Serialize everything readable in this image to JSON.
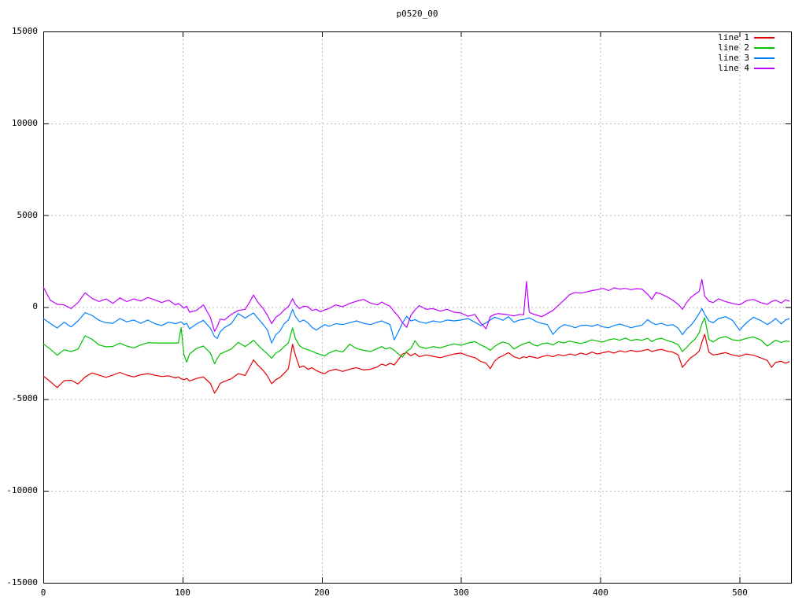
{
  "chart_data": {
    "type": "line",
    "title": "p0520_00",
    "xlabel": "",
    "ylabel": "",
    "xlim": [
      0,
      537
    ],
    "ylim": [
      -15000,
      15000
    ],
    "xticks": [
      0,
      100,
      200,
      300,
      400,
      500
    ],
    "yticks": [
      -15000,
      -10000,
      -5000,
      0,
      5000,
      10000,
      15000
    ],
    "grid": true,
    "grid_style": "dashed-gray",
    "legend_position": "top-right-inside",
    "x": [
      0,
      5,
      10,
      15,
      20,
      25,
      30,
      35,
      40,
      45,
      50,
      55,
      60,
      65,
      70,
      75,
      80,
      85,
      90,
      95,
      97,
      99,
      101,
      103,
      105,
      110,
      115,
      120,
      123,
      125,
      127,
      130,
      135,
      140,
      145,
      148,
      151,
      154,
      158,
      161,
      164,
      167,
      170,
      173,
      176,
      179,
      181,
      184,
      187,
      190,
      193,
      196,
      199,
      202,
      205,
      210,
      215,
      220,
      225,
      230,
      235,
      240,
      243,
      246,
      249,
      252,
      255,
      258,
      261,
      264,
      267,
      270,
      275,
      280,
      285,
      290,
      295,
      300,
      305,
      310,
      314,
      318,
      321,
      324,
      327,
      330,
      334,
      338,
      342,
      345,
      347,
      349,
      352,
      355,
      358,
      362,
      366,
      370,
      374,
      378,
      382,
      386,
      390,
      394,
      398,
      402,
      406,
      410,
      414,
      418,
      422,
      426,
      430,
      434,
      437,
      440,
      444,
      448,
      452,
      456,
      459,
      462,
      465,
      468,
      471,
      473,
      475,
      478,
      481,
      485,
      490,
      495,
      500,
      505,
      510,
      515,
      520,
      523,
      526,
      530,
      533,
      536
    ],
    "series": [
      {
        "name": "line 1",
        "color": "#e60000",
        "values": [
          -3750,
          -4050,
          -4380,
          -4000,
          -3980,
          -4180,
          -3800,
          -3580,
          -3700,
          -3820,
          -3700,
          -3550,
          -3700,
          -3800,
          -3680,
          -3620,
          -3700,
          -3780,
          -3740,
          -3850,
          -3800,
          -3900,
          -3950,
          -3880,
          -4020,
          -3880,
          -3800,
          -4150,
          -4680,
          -4450,
          -4150,
          -4050,
          -3900,
          -3620,
          -3720,
          -3300,
          -2870,
          -3150,
          -3450,
          -3750,
          -4170,
          -3950,
          -3820,
          -3600,
          -3350,
          -2020,
          -2600,
          -3280,
          -3200,
          -3380,
          -3300,
          -3450,
          -3550,
          -3620,
          -3480,
          -3380,
          -3500,
          -3380,
          -3300,
          -3420,
          -3380,
          -3250,
          -3100,
          -3180,
          -3050,
          -3150,
          -2850,
          -2550,
          -2480,
          -2650,
          -2520,
          -2700,
          -2600,
          -2680,
          -2750,
          -2650,
          -2550,
          -2500,
          -2650,
          -2750,
          -2950,
          -3050,
          -3350,
          -2950,
          -2750,
          -2650,
          -2480,
          -2700,
          -2800,
          -2700,
          -2750,
          -2680,
          -2720,
          -2780,
          -2700,
          -2620,
          -2700,
          -2580,
          -2650,
          -2550,
          -2620,
          -2500,
          -2580,
          -2450,
          -2550,
          -2480,
          -2420,
          -2500,
          -2380,
          -2450,
          -2350,
          -2420,
          -2380,
          -2300,
          -2420,
          -2350,
          -2300,
          -2400,
          -2450,
          -2600,
          -3280,
          -3000,
          -2750,
          -2600,
          -2400,
          -1900,
          -1480,
          -2450,
          -2600,
          -2550,
          -2480,
          -2600,
          -2680,
          -2550,
          -2620,
          -2750,
          -2900,
          -3280,
          -3000,
          -2950,
          -3050,
          -2960
        ]
      },
      {
        "name": "line 2",
        "color": "#00c000",
        "values": [
          -2000,
          -2280,
          -2620,
          -2320,
          -2420,
          -2280,
          -1560,
          -1750,
          -2060,
          -2160,
          -2140,
          -1960,
          -2120,
          -2220,
          -2060,
          -1940,
          -1950,
          -1950,
          -1950,
          -1950,
          -1950,
          -1120,
          -2600,
          -3000,
          -2550,
          -2250,
          -2120,
          -2500,
          -3080,
          -2800,
          -2550,
          -2450,
          -2280,
          -1920,
          -2150,
          -1980,
          -1800,
          -2050,
          -2350,
          -2550,
          -2780,
          -2500,
          -2380,
          -2150,
          -1950,
          -1130,
          -1700,
          -2100,
          -2250,
          -2320,
          -2400,
          -2500,
          -2580,
          -2660,
          -2500,
          -2350,
          -2450,
          -2020,
          -2250,
          -2350,
          -2420,
          -2250,
          -2150,
          -2280,
          -2200,
          -2350,
          -2550,
          -2720,
          -2400,
          -2250,
          -1830,
          -2150,
          -2250,
          -2150,
          -2220,
          -2100,
          -2000,
          -2080,
          -1950,
          -1880,
          -2050,
          -2200,
          -2350,
          -2150,
          -2000,
          -1900,
          -1980,
          -2280,
          -2100,
          -2000,
          -1950,
          -1900,
          -2050,
          -2120,
          -2000,
          -1950,
          -2060,
          -1880,
          -1950,
          -1850,
          -1920,
          -1980,
          -1900,
          -1780,
          -1850,
          -1900,
          -1780,
          -1720,
          -1800,
          -1680,
          -1820,
          -1760,
          -1800,
          -1700,
          -1880,
          -1750,
          -1700,
          -1820,
          -1900,
          -2050,
          -2420,
          -2200,
          -1950,
          -1750,
          -1400,
          -900,
          -580,
          -1750,
          -1900,
          -1700,
          -1600,
          -1780,
          -1820,
          -1700,
          -1620,
          -1780,
          -2120,
          -1950,
          -1800,
          -1920,
          -1850,
          -1880
        ]
      },
      {
        "name": "line 3",
        "color": "#0080ff",
        "values": [
          -620,
          -880,
          -1140,
          -820,
          -1080,
          -750,
          -300,
          -450,
          -720,
          -850,
          -880,
          -620,
          -800,
          -700,
          -880,
          -700,
          -900,
          -1000,
          -820,
          -900,
          -850,
          -800,
          -950,
          -880,
          -1180,
          -920,
          -720,
          -1150,
          -1600,
          -1700,
          -1350,
          -1120,
          -900,
          -350,
          -600,
          -450,
          -320,
          -600,
          -950,
          -1250,
          -1950,
          -1500,
          -1300,
          -900,
          -700,
          -120,
          -500,
          -800,
          -700,
          -850,
          -1100,
          -1250,
          -1100,
          -950,
          -1050,
          -900,
          -950,
          -850,
          -750,
          -880,
          -950,
          -820,
          -750,
          -850,
          -950,
          -1780,
          -1350,
          -850,
          -500,
          -750,
          -680,
          -800,
          -880,
          -750,
          -820,
          -700,
          -750,
          -700,
          -620,
          -820,
          -1000,
          -850,
          -700,
          -550,
          -620,
          -720,
          -520,
          -820,
          -700,
          -680,
          -620,
          -580,
          -700,
          -820,
          -880,
          -950,
          -1480,
          -1150,
          -950,
          -1020,
          -1120,
          -1000,
          -980,
          -1050,
          -950,
          -1080,
          -1120,
          -1000,
          -920,
          -1020,
          -1120,
          -1050,
          -980,
          -680,
          -850,
          -950,
          -880,
          -1000,
          -950,
          -1150,
          -1500,
          -1200,
          -1000,
          -700,
          -350,
          -80,
          -400,
          -750,
          -850,
          -620,
          -520,
          -720,
          -1250,
          -850,
          -550,
          -720,
          -950,
          -800,
          -620,
          -920,
          -700,
          -620
        ]
      },
      {
        "name": "line 4",
        "color": "#c000ff",
        "values": [
          1100,
          380,
          150,
          120,
          -80,
          250,
          780,
          480,
          300,
          450,
          200,
          500,
          300,
          450,
          330,
          520,
          400,
          250,
          380,
          120,
          200,
          80,
          -60,
          50,
          -280,
          -180,
          120,
          -550,
          -1320,
          -1050,
          -650,
          -700,
          -400,
          -180,
          -120,
          250,
          660,
          280,
          -80,
          -450,
          -900,
          -550,
          -400,
          -150,
          20,
          460,
          150,
          -80,
          50,
          20,
          -180,
          -120,
          -250,
          -150,
          -80,
          120,
          20,
          200,
          320,
          420,
          220,
          120,
          280,
          150,
          50,
          -250,
          -500,
          -850,
          -1100,
          -450,
          -150,
          80,
          -120,
          -80,
          -220,
          -120,
          -280,
          -320,
          -500,
          -400,
          -850,
          -1180,
          -520,
          -400,
          -350,
          -380,
          -420,
          -480,
          -400,
          -420,
          1400,
          -280,
          -380,
          -450,
          -520,
          -350,
          -180,
          100,
          380,
          680,
          800,
          760,
          820,
          900,
          950,
          1020,
          900,
          1050,
          980,
          1020,
          950,
          1000,
          980,
          700,
          420,
          800,
          700,
          550,
          380,
          150,
          -120,
          250,
          520,
          700,
          850,
          1500,
          600,
          320,
          250,
          450,
          300,
          200,
          120,
          350,
          420,
          250,
          150,
          300,
          380,
          220,
          400,
          320
        ]
      }
    ]
  }
}
